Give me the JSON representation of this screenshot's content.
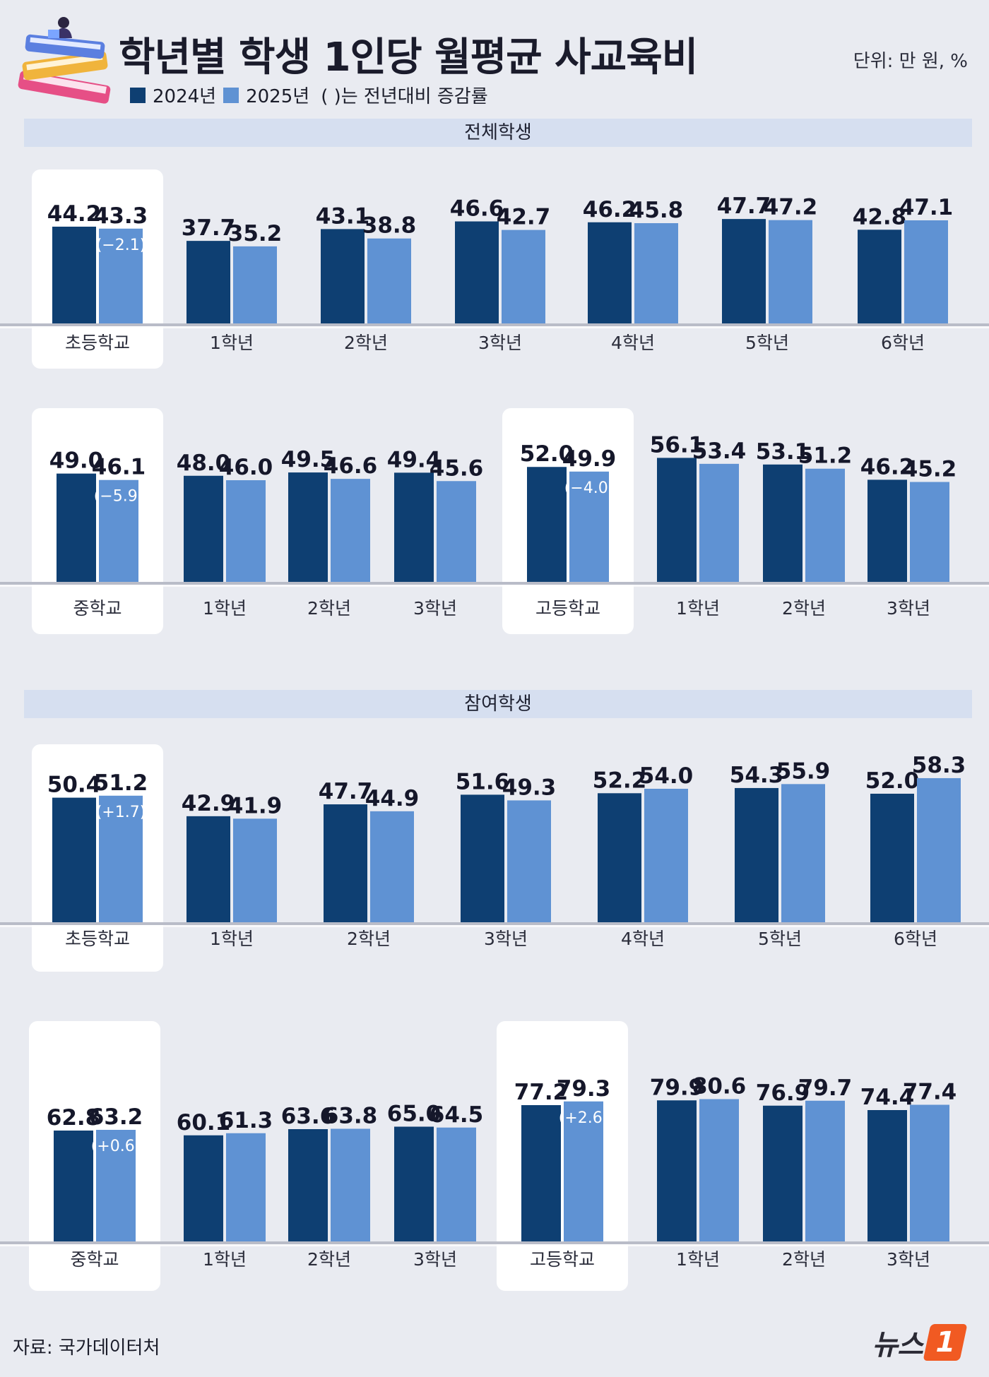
{
  "title": "학년별 학생 1인당 월평균 사교육비",
  "unit": "단위: 만 원, %",
  "legend": {
    "series": [
      {
        "label": "2024년",
        "color": "#0e3f72"
      },
      {
        "label": "2025년",
        "color": "#5f92d3"
      }
    ],
    "note": "( )는 전년대비 증감률"
  },
  "sections": [
    {
      "label": "전체학생"
    },
    {
      "label": "참여학생"
    }
  ],
  "source": "자료: 국가데이터처",
  "logo": {
    "text": "뉴스",
    "badge": "1"
  },
  "chart_data": [
    {
      "type": "bar",
      "section": "전체학생",
      "ylim": [
        0,
        60
      ],
      "categories": [
        "초등학교",
        "1학년",
        "2학년",
        "3학년",
        "4학년",
        "5학년",
        "6학년"
      ],
      "highlight": [
        "초등학교"
      ],
      "series": [
        {
          "name": "2024년",
          "values": [
            44.2,
            37.7,
            43.1,
            46.6,
            46.2,
            47.7,
            42.8
          ]
        },
        {
          "name": "2025년",
          "values": [
            43.3,
            35.2,
            38.8,
            42.7,
            45.8,
            47.2,
            47.1
          ]
        }
      ],
      "change_labels": [
        "(−2.1)",
        null,
        null,
        null,
        null,
        null,
        null
      ]
    },
    {
      "type": "bar",
      "section": "전체학생",
      "ylim": [
        0,
        60
      ],
      "categories": [
        "중학교",
        "1학년",
        "2학년",
        "3학년",
        "고등학교",
        "1학년",
        "2학년",
        "3학년"
      ],
      "highlight": [
        "중학교",
        "고등학교"
      ],
      "series": [
        {
          "name": "2024년",
          "values": [
            49.0,
            48.0,
            49.5,
            49.4,
            52.0,
            56.1,
            53.1,
            46.2
          ]
        },
        {
          "name": "2025년",
          "values": [
            46.1,
            46.0,
            46.6,
            45.6,
            49.9,
            53.4,
            51.2,
            45.2
          ]
        }
      ],
      "change_labels": [
        "(−5.9)",
        null,
        null,
        null,
        "(−4.0)",
        null,
        null,
        null
      ]
    },
    {
      "type": "bar",
      "section": "참여학생",
      "ylim": [
        0,
        60
      ],
      "categories": [
        "초등학교",
        "1학년",
        "2학년",
        "3학년",
        "4학년",
        "5학년",
        "6학년"
      ],
      "highlight": [
        "초등학교"
      ],
      "series": [
        {
          "name": "2024년",
          "values": [
            50.4,
            42.9,
            47.7,
            51.6,
            52.2,
            54.3,
            52.0
          ]
        },
        {
          "name": "2025년",
          "values": [
            51.2,
            41.9,
            44.9,
            49.3,
            54.0,
            55.9,
            58.3
          ]
        }
      ],
      "change_labels": [
        "(+1.7)",
        null,
        null,
        null,
        null,
        null,
        null
      ]
    },
    {
      "type": "bar",
      "section": "참여학생",
      "ylim": [
        0,
        85
      ],
      "categories": [
        "중학교",
        "1학년",
        "2학년",
        "3학년",
        "고등학교",
        "1학년",
        "2학년",
        "3학년"
      ],
      "highlight": [
        "중학교",
        "고등학교"
      ],
      "series": [
        {
          "name": "2024년",
          "values": [
            62.8,
            60.1,
            63.6,
            65.0,
            77.2,
            79.9,
            76.9,
            74.4
          ]
        },
        {
          "name": "2025년",
          "values": [
            63.2,
            61.3,
            63.8,
            64.5,
            79.3,
            80.6,
            79.7,
            77.4
          ]
        }
      ],
      "change_labels": [
        "(+0.6)",
        null,
        null,
        null,
        "(+2.6)",
        null,
        null,
        null
      ]
    }
  ]
}
